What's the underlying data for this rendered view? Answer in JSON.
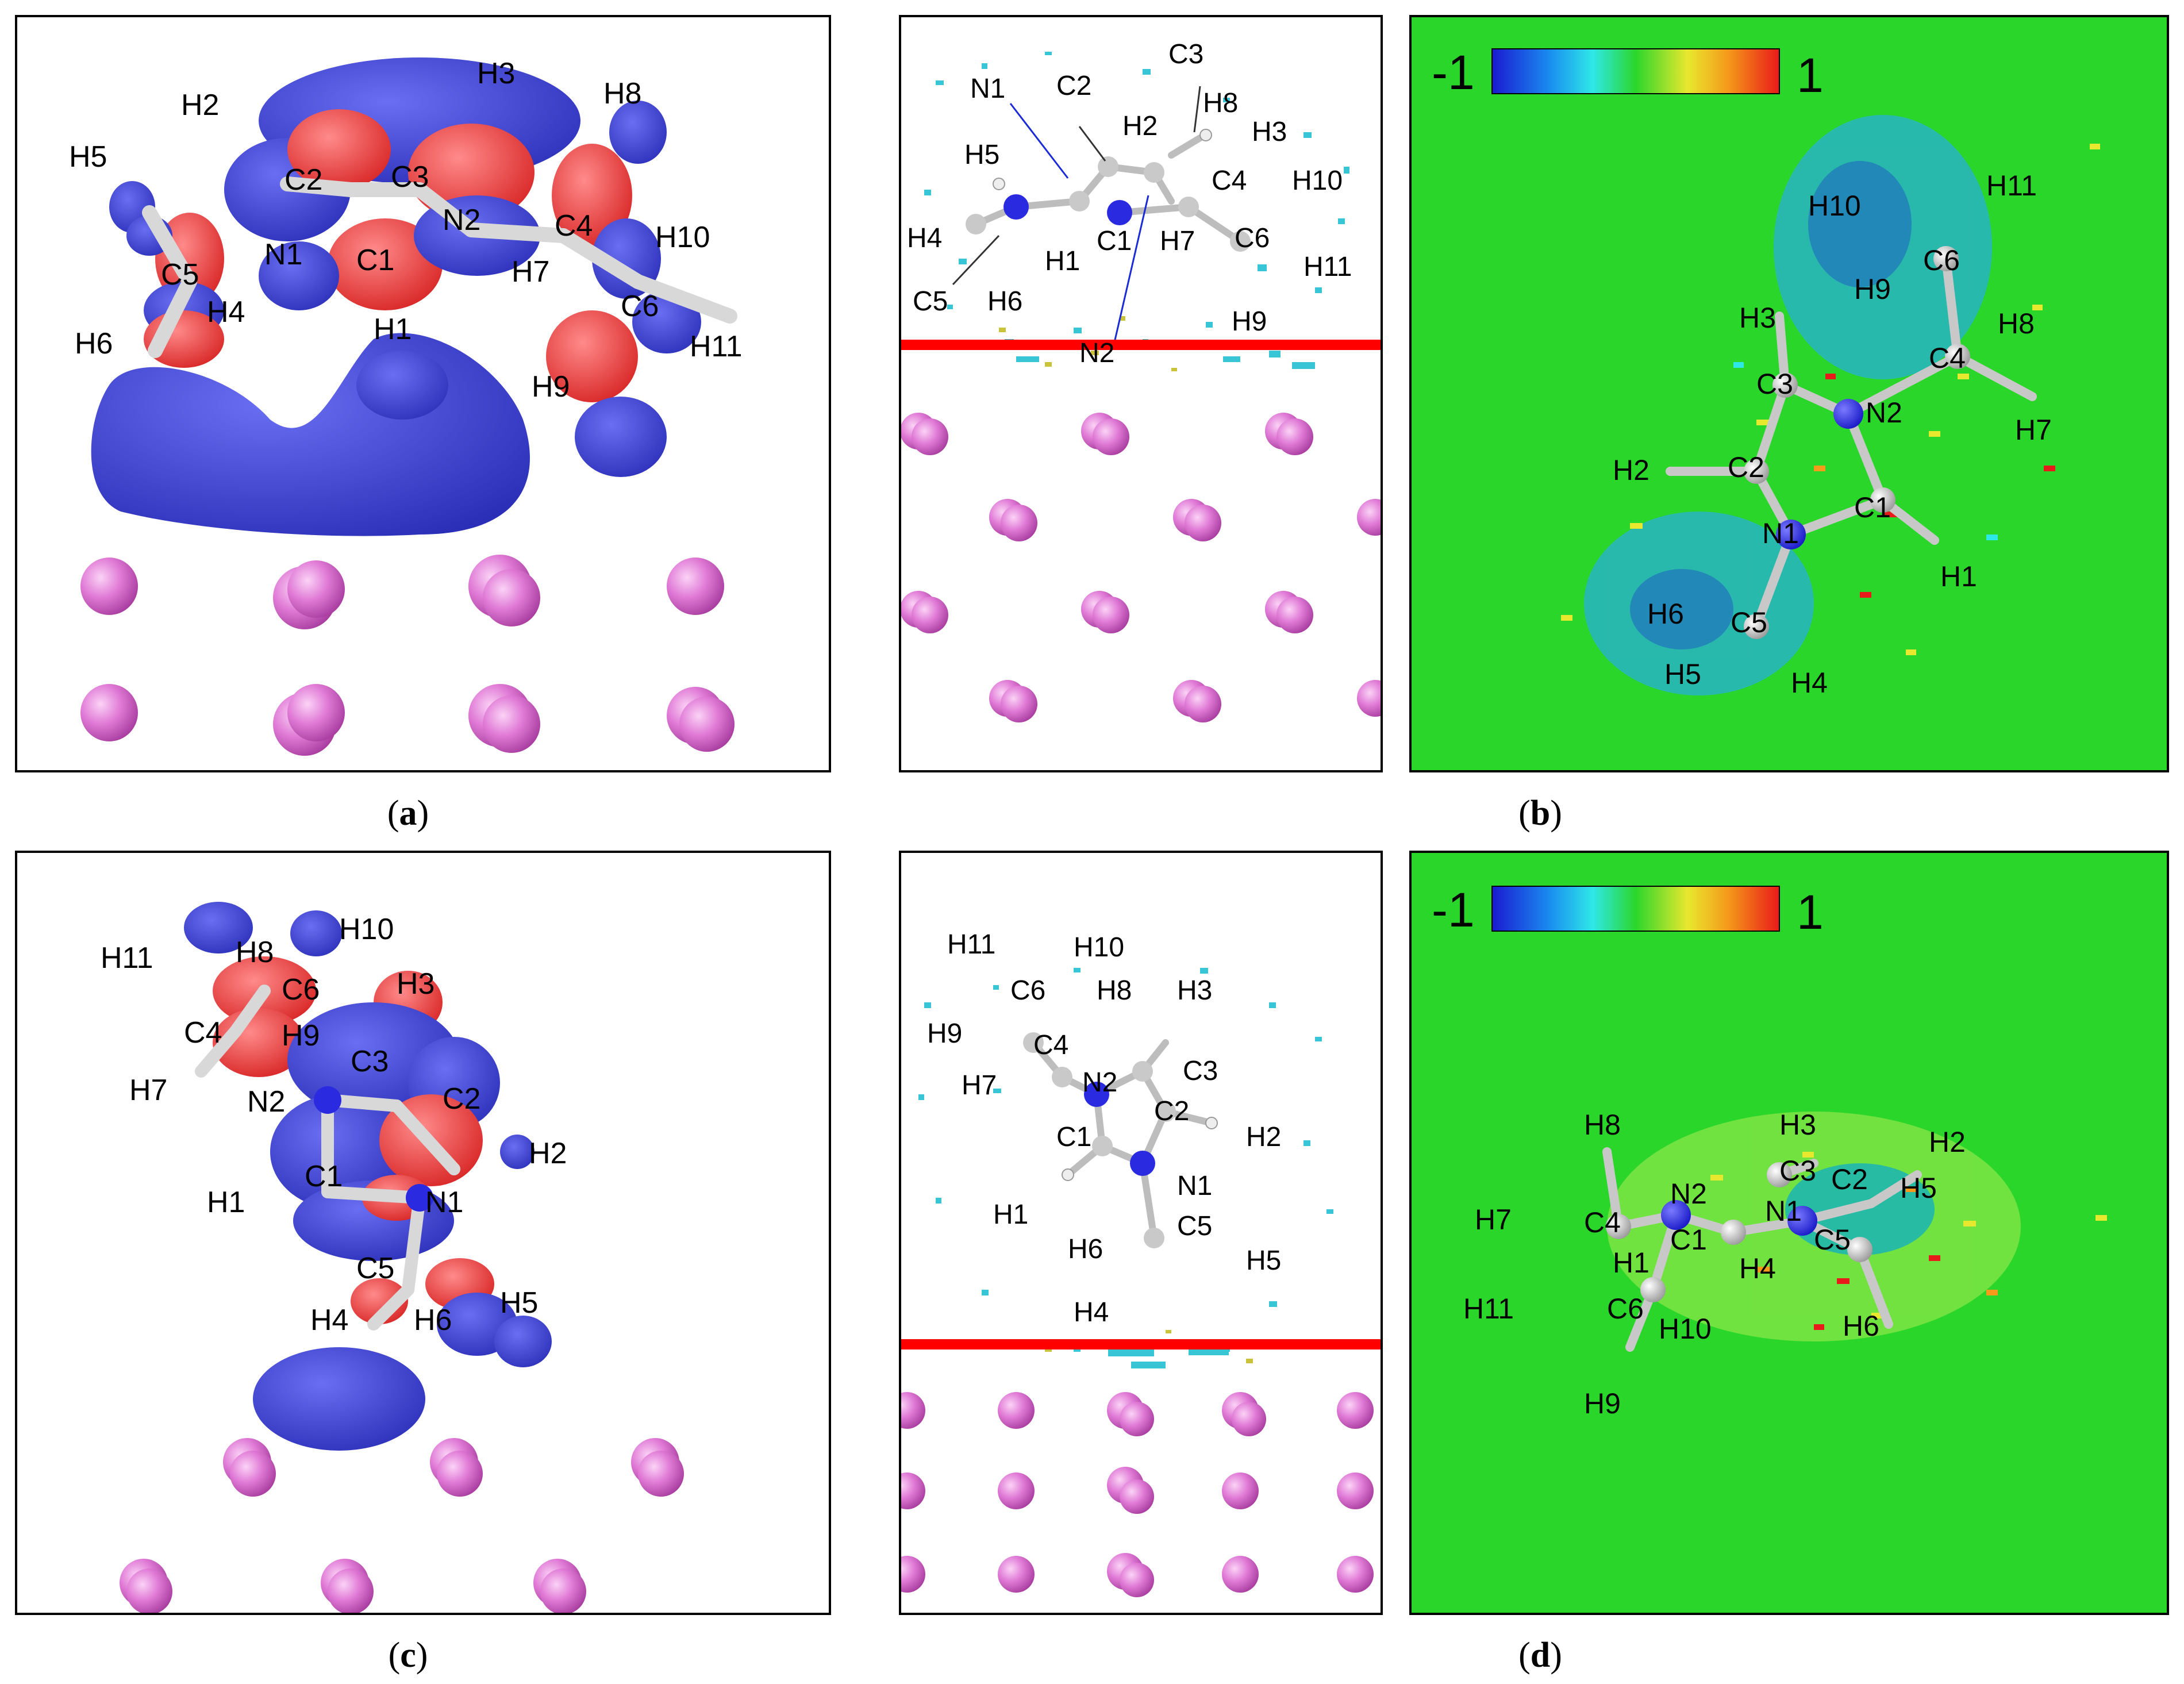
{
  "captions": [
    "a",
    "b",
    "c",
    "d"
  ],
  "colorbar": {
    "min_label": "-1",
    "max_label": "1"
  },
  "panel_a": {
    "atoms": [
      "H2",
      "H3",
      "H8",
      "H5",
      "C2",
      "C3",
      "N2",
      "C4",
      "H10",
      "N1",
      "C1",
      "C5",
      "H7",
      "C6",
      "H4",
      "H1",
      "H6",
      "H11",
      "H9"
    ]
  },
  "panel_b_side": {
    "atoms": [
      "N1",
      "C2",
      "C3",
      "H8",
      "H2",
      "H3",
      "H5",
      "C4",
      "H10",
      "H4",
      "H1",
      "C1",
      "H7",
      "C6",
      "H11",
      "C5",
      "H6",
      "H9",
      "N2"
    ]
  },
  "panel_b_map": {
    "atoms": [
      "H11",
      "H10",
      "C6",
      "H9",
      "H3",
      "H8",
      "C4",
      "C3",
      "N2",
      "H7",
      "H2",
      "C2",
      "C1",
      "N1",
      "H1",
      "H6",
      "C5",
      "H5",
      "H4"
    ]
  },
  "panel_c": {
    "atoms": [
      "H10",
      "H11",
      "H8",
      "C6",
      "H3",
      "C4",
      "H9",
      "C3",
      "C2",
      "H7",
      "N2",
      "H2",
      "C1",
      "N1",
      "H1",
      "C5",
      "H5",
      "H4",
      "H6"
    ]
  },
  "panel_d_side": {
    "atoms": [
      "H11",
      "H10",
      "C6",
      "H8",
      "H3",
      "H9",
      "C4",
      "C3",
      "N2",
      "H7",
      "C2",
      "C1",
      "H2",
      "N1",
      "H1",
      "C5",
      "H6",
      "H5",
      "H4"
    ]
  },
  "panel_d_map": {
    "atoms": [
      "H8",
      "H3",
      "H2",
      "C3",
      "C2",
      "N2",
      "H5",
      "N1",
      "H7",
      "C4",
      "C1",
      "C5",
      "H1",
      "H4",
      "H11",
      "C6",
      "H6",
      "H10",
      "H9"
    ]
  },
  "colors": {
    "surface_blue": "#3b3fd6",
    "surface_red": "#e23535",
    "substrate_pink": "#e07ad6",
    "map_green": "#2bd62b",
    "interface_red": "#ff0000"
  }
}
